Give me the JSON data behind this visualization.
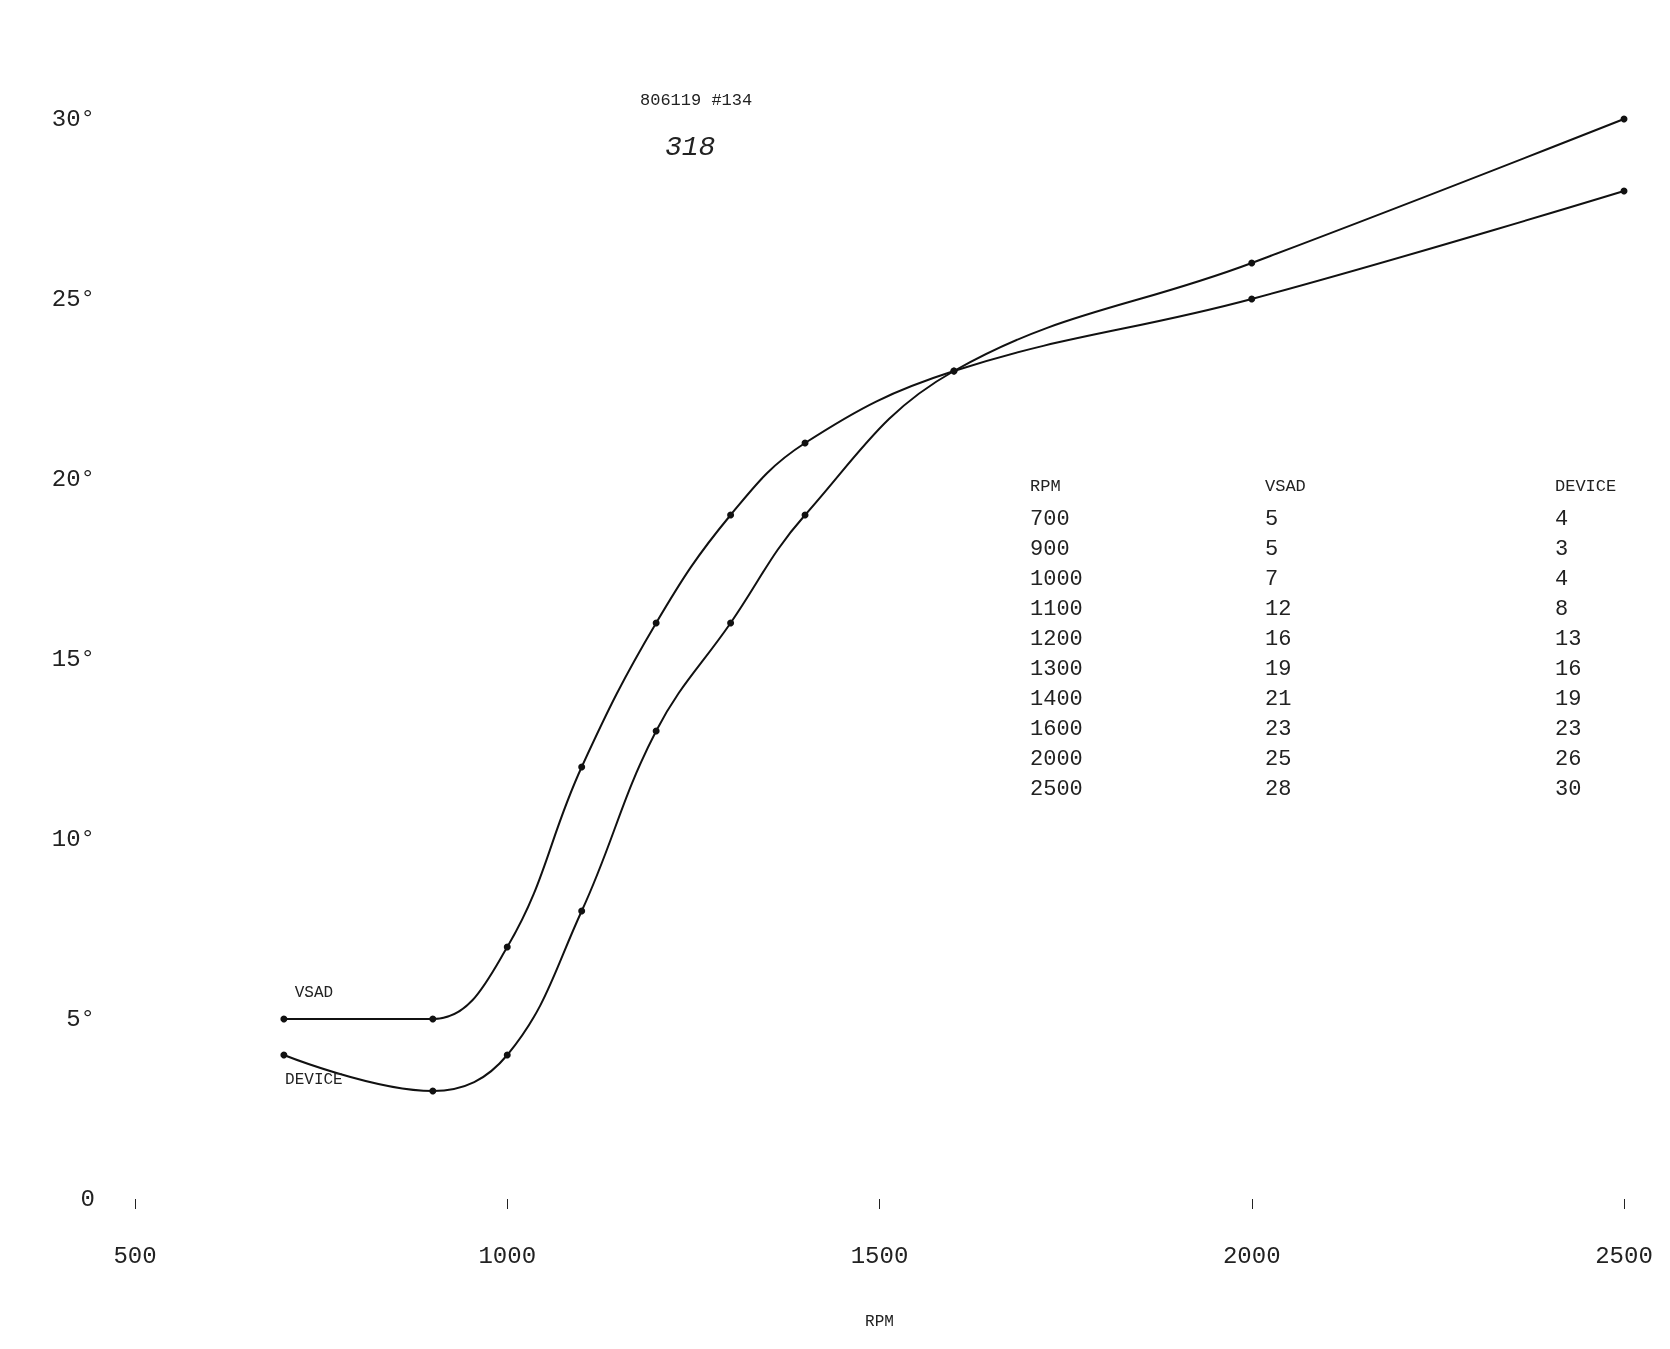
{
  "chart_data": {
    "type": "line",
    "title": "318",
    "xlabel": "RPM",
    "annotations": [
      "806119 #134",
      "700",
      "900",
      "1000",
      "1100",
      "1200",
      "1300",
      "1400",
      "1600",
      "2000",
      "2500",
      "5",
      "5",
      "7",
      "12",
      "16",
      "19",
      "21",
      "23",
      "25",
      "28",
      "4",
      "3",
      "4",
      "8",
      "13",
      "16",
      "19",
      "23",
      "26",
      "30"
    ],
    "xlim": [
      500,
      2500
    ],
    "xticks": [
      500,
      1000,
      1500,
      2000,
      2500
    ],
    "ylim": [
      0,
      30
    ],
    "yticks": [
      0,
      {
        "value": 5,
        "label": "5°"
      },
      {
        "value": 10,
        "label": "10°"
      },
      {
        "value": 15,
        "label": "15°"
      },
      {
        "value": 20,
        "label": "20°"
      },
      {
        "value": 25,
        "label": "25°"
      },
      {
        "value": 30,
        "label": "30°"
      }
    ],
    "x": [
      700,
      900,
      1000,
      1100,
      1200,
      1300,
      1400,
      1600,
      2000,
      2500
    ],
    "series": [
      {
        "name": "VSAD",
        "color": "#111111",
        "values": [
          5,
          5,
          7,
          12,
          16,
          19,
          21,
          23,
          25,
          28
        ]
      },
      {
        "name": "DEVICE",
        "color": "#111111",
        "values": [
          4,
          3,
          4,
          8,
          13,
          16,
          19,
          23,
          26,
          30
        ]
      }
    ],
    "grid": false,
    "legend": false,
    "marker": "circle",
    "line_style": "solid"
  }
}
